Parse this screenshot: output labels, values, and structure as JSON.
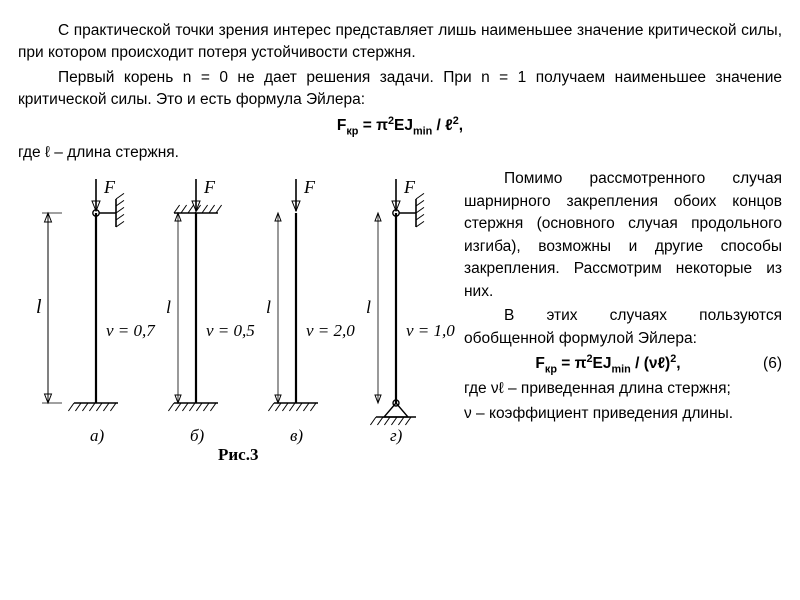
{
  "para1": "С практической точки зрения интерес представляет лишь наименьшее значение критической силы, при котором происходит потеря устойчивости стержня.",
  "para2": "Первый корень n = 0 не дает решения задачи. При n = 1 получаем наименьшее значение критической силы. Это и есть формула Эйлера:",
  "formula1_pre": "F",
  "formula1_sub1": "кр",
  "formula1_mid1": " = π",
  "formula1_sup1": "2",
  "formula1_mid2": "EJ",
  "formula1_sub2": "min",
  "formula1_mid3": " / ℓ",
  "formula1_sup2": "2",
  "formula1_end": ",",
  "where1": "где ℓ – длина стержня.",
  "right_para1": "Помимо рассмотренного случая шарнирного закрепления обоих концов стержня (основного случая продольного изгиба), возможны и другие способы закрепления. Рассмотрим некоторые из них.",
  "right_para2": "В этих случаях пользуются обобщенной формулой Эйлера:",
  "formula2_pre": "F",
  "formula2_sub1": "кр",
  "formula2_mid1": " = π",
  "formula2_sup1": "2",
  "formula2_mid2": "EJ",
  "formula2_sub2": "min",
  "formula2_mid3": " / (νℓ)",
  "formula2_sup2": "2",
  "formula2_end": ",",
  "eqnum": "(6)",
  "where2": "где  νℓ – приведенная длина стержня;",
  "where3": "ν – коэффициент приведения длины.",
  "fig": {
    "caption": "Рис.3",
    "length_label": "l",
    "force_label": "F",
    "columns": [
      {
        "nu": "ν = 0,7",
        "tag": "а)",
        "top": "pin-wall-right",
        "bottom": "fixed"
      },
      {
        "nu": "ν = 0,5",
        "tag": "б)",
        "top": "fixed",
        "bottom": "fixed"
      },
      {
        "nu": "ν = 2,0",
        "tag": "в)",
        "top": "free",
        "bottom": "fixed"
      },
      {
        "nu": "ν = 1,0",
        "tag": "г)",
        "top": "pin-wall-right",
        "bottom": "pin"
      }
    ],
    "stroke": "#000000",
    "rod_width": 2.2
  }
}
